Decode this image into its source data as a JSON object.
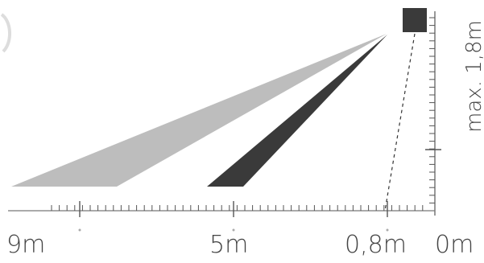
{
  "distance_labels": {
    "far": "9m",
    "mid": "5m",
    "near": "0,8m",
    "zero": "0m"
  },
  "height_label": "max. 1,8m",
  "colors": {
    "light_beam": "#bdbdbd",
    "dark_beam": "#3a3a3a",
    "sensor": "#3a3a3a",
    "axis": "#555555",
    "text": "#444444"
  },
  "icons": {
    "sensor": "sensor-icon"
  }
}
